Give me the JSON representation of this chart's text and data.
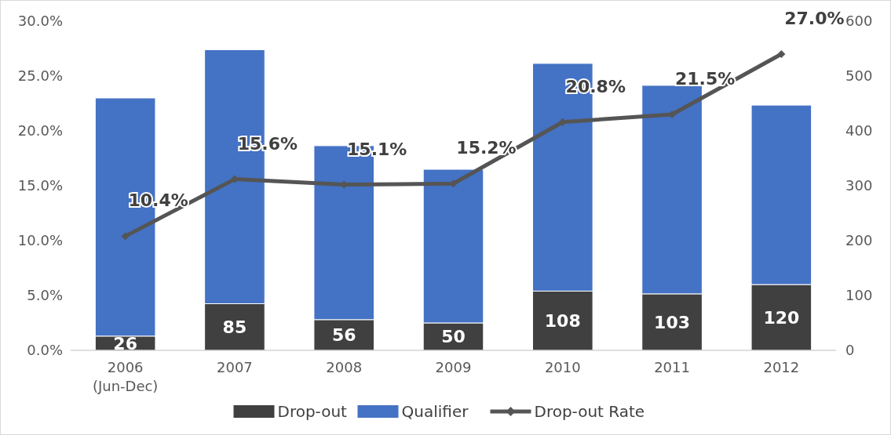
{
  "chart_data": {
    "type": "bar",
    "stacked": true,
    "categories": [
      "2006\n(Jun-Dec)",
      "2007",
      "2008",
      "2009",
      "2010",
      "2011",
      "2012"
    ],
    "series": [
      {
        "name": "Drop-out",
        "color": "#404040",
        "axis": "y2",
        "values": [
          26,
          85,
          56,
          50,
          108,
          103,
          120
        ],
        "value_labels": [
          "26",
          "85",
          "56",
          "50",
          "108",
          "103",
          "120"
        ]
      },
      {
        "name": "Qualifier",
        "color": "#4472c4",
        "axis": "y2",
        "values": [
          434,
          463,
          317,
          280,
          415,
          380,
          327
        ]
      },
      {
        "name": "Drop-out Rate",
        "type": "line",
        "color": "#555555",
        "marker": "diamond",
        "values": [
          10.4,
          15.6,
          15.1,
          15.2,
          20.8,
          21.5,
          27.0
        ],
        "value_labels": [
          "10.4%",
          "15.6%",
          "15.1%",
          "15.2%",
          "20.8%",
          "21.5%",
          "27.0%"
        ]
      }
    ],
    "ylim": [
      0,
      30
    ],
    "yticks": [
      {
        "value": 0,
        "label": "0.0%"
      },
      {
        "value": 5,
        "label": "5.0%"
      },
      {
        "value": 10,
        "label": "10.0%"
      },
      {
        "value": 15,
        "label": "15.0%"
      },
      {
        "value": 20,
        "label": "20.0%"
      },
      {
        "value": 25,
        "label": "25.0%"
      },
      {
        "value": 30,
        "label": "30.0%"
      }
    ],
    "y2lim": [
      0,
      600
    ],
    "y2ticks": [
      0,
      100,
      200,
      300,
      400,
      500,
      600
    ],
    "legend": "bottom",
    "grid": false
  }
}
